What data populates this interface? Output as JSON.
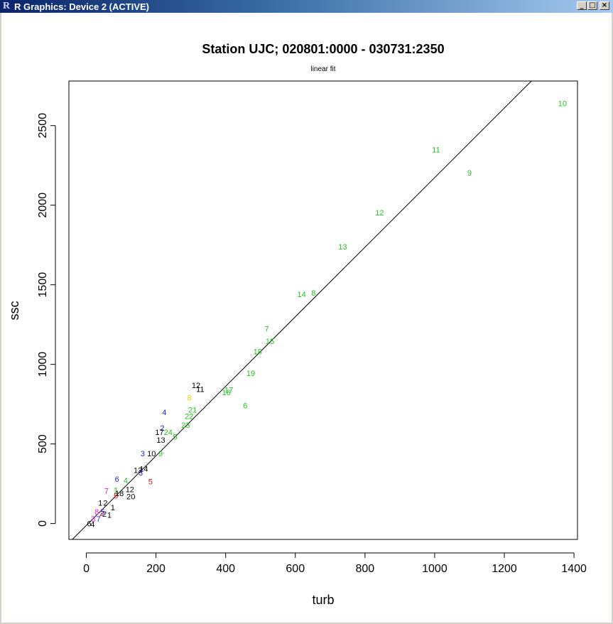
{
  "window": {
    "app_icon": "R",
    "title": "R Graphics: Device 2 (ACTIVE)",
    "min_label": "_",
    "max_label": "□",
    "close_label": "×"
  },
  "chart_data": {
    "type": "scatter",
    "title": "Station UJC; 020801:0000 - 030731:2350",
    "subtitle": "linear fit",
    "xlabel": "turb",
    "ylabel": "ssc",
    "xlim": [
      -50,
      1410
    ],
    "ylim": [
      -100,
      2780
    ],
    "xticks": [
      0,
      200,
      400,
      600,
      800,
      1000,
      1200,
      1400
    ],
    "yticks": [
      0,
      500,
      1000,
      1500,
      2000,
      2500
    ],
    "grid": false,
    "fit_line": {
      "slope": 2.185,
      "intercept": -12
    },
    "colors": {
      "green": "#22c422",
      "black": "#000000",
      "blue": "#1f1fd4",
      "red": "#e01010",
      "magenta": "#e020e0",
      "yellow": "#e8d000"
    },
    "points": [
      {
        "x": 1367,
        "y": 2640,
        "label": "10",
        "color": "green"
      },
      {
        "x": 1004,
        "y": 2350,
        "label": "11",
        "color": "green"
      },
      {
        "x": 1100,
        "y": 2205,
        "label": "9",
        "color": "green"
      },
      {
        "x": 842,
        "y": 1955,
        "label": "12",
        "color": "green"
      },
      {
        "x": 736,
        "y": 1740,
        "label": "13",
        "color": "green"
      },
      {
        "x": 618,
        "y": 1440,
        "label": "14",
        "color": "green"
      },
      {
        "x": 652,
        "y": 1450,
        "label": "8",
        "color": "green"
      },
      {
        "x": 518,
        "y": 1225,
        "label": "7",
        "color": "green"
      },
      {
        "x": 527,
        "y": 1145,
        "label": "15",
        "color": "green"
      },
      {
        "x": 492,
        "y": 1080,
        "label": "18",
        "color": "green"
      },
      {
        "x": 472,
        "y": 945,
        "label": "19",
        "color": "green"
      },
      {
        "x": 409,
        "y": 840,
        "label": "17",
        "color": "green"
      },
      {
        "x": 402,
        "y": 825,
        "label": "16",
        "color": "green"
      },
      {
        "x": 456,
        "y": 742,
        "label": "6",
        "color": "green"
      },
      {
        "x": 315,
        "y": 870,
        "label": "12",
        "color": "black"
      },
      {
        "x": 327,
        "y": 845,
        "label": "11",
        "color": "black"
      },
      {
        "x": 296,
        "y": 790,
        "label": "8",
        "color": "yellow"
      },
      {
        "x": 224,
        "y": 700,
        "label": "4",
        "color": "blue"
      },
      {
        "x": 305,
        "y": 715,
        "label": "21",
        "color": "green"
      },
      {
        "x": 295,
        "y": 675,
        "label": "22",
        "color": "green"
      },
      {
        "x": 285,
        "y": 620,
        "label": "23",
        "color": "green"
      },
      {
        "x": 235,
        "y": 575,
        "label": "24",
        "color": "green"
      },
      {
        "x": 255,
        "y": 545,
        "label": "5",
        "color": "green"
      },
      {
        "x": 218,
        "y": 600,
        "label": "2",
        "color": "blue"
      },
      {
        "x": 210,
        "y": 575,
        "label": "17",
        "color": "black"
      },
      {
        "x": 214,
        "y": 525,
        "label": "13",
        "color": "black"
      },
      {
        "x": 187,
        "y": 440,
        "label": "10",
        "color": "black"
      },
      {
        "x": 213,
        "y": 440,
        "label": "9",
        "color": "green"
      },
      {
        "x": 162,
        "y": 440,
        "label": "3",
        "color": "blue"
      },
      {
        "x": 148,
        "y": 335,
        "label": "13",
        "color": "black"
      },
      {
        "x": 165,
        "y": 345,
        "label": "14",
        "color": "black"
      },
      {
        "x": 156,
        "y": 320,
        "label": "3",
        "color": "blue"
      },
      {
        "x": 88,
        "y": 280,
        "label": "6",
        "color": "blue"
      },
      {
        "x": 113,
        "y": 270,
        "label": "4",
        "color": "green"
      },
      {
        "x": 184,
        "y": 265,
        "label": "5",
        "color": "red"
      },
      {
        "x": 58,
        "y": 205,
        "label": "7",
        "color": "magenta"
      },
      {
        "x": 85,
        "y": 210,
        "label": "1",
        "color": "green"
      },
      {
        "x": 125,
        "y": 215,
        "label": "12",
        "color": "black"
      },
      {
        "x": 128,
        "y": 170,
        "label": "20",
        "color": "black"
      },
      {
        "x": 95,
        "y": 190,
        "label": "18",
        "color": "black"
      },
      {
        "x": 85,
        "y": 175,
        "label": "5",
        "color": "red"
      },
      {
        "x": 40,
        "y": 130,
        "label": "1",
        "color": "black"
      },
      {
        "x": 55,
        "y": 130,
        "label": "2",
        "color": "black"
      },
      {
        "x": 76,
        "y": 100,
        "label": "1",
        "color": "black"
      },
      {
        "x": 52,
        "y": 60,
        "label": "2",
        "color": "black"
      },
      {
        "x": 66,
        "y": 55,
        "label": "1",
        "color": "black"
      },
      {
        "x": 30,
        "y": 75,
        "label": "8",
        "color": "magenta"
      },
      {
        "x": 44,
        "y": 65,
        "label": "2",
        "color": "red"
      },
      {
        "x": 47,
        "y": 75,
        "label": "5",
        "color": "blue"
      },
      {
        "x": 20,
        "y": 30,
        "label": "3",
        "color": "magenta"
      },
      {
        "x": 35,
        "y": 30,
        "label": "7",
        "color": "blue"
      },
      {
        "x": 8,
        "y": 0,
        "label": "6",
        "color": "black"
      },
      {
        "x": 18,
        "y": -5,
        "label": "4",
        "color": "black"
      }
    ]
  }
}
